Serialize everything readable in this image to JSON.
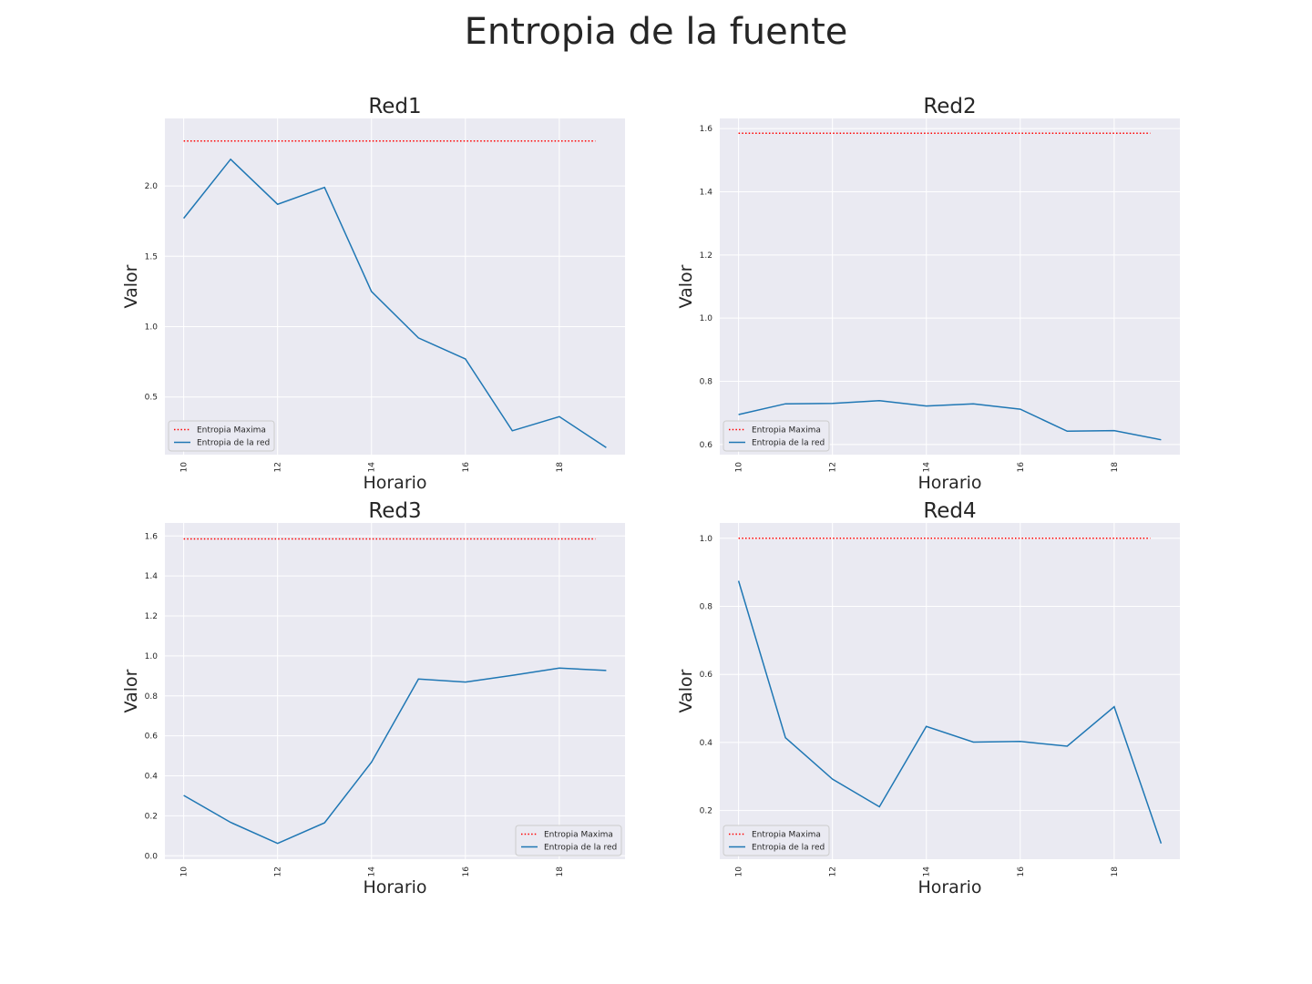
{
  "figure": {
    "title": "Entropia de la fuente"
  },
  "colors": {
    "background": "#EAEAF2",
    "grid": "#FFFFFF",
    "max_line": "#FF0000",
    "series_line": "#1F77B4"
  },
  "chart_data": [
    {
      "type": "line",
      "title": "Red1",
      "xlabel": "Horario",
      "ylabel": "Valor",
      "x": [
        10,
        11,
        12,
        13,
        14,
        15,
        16,
        17,
        18,
        19
      ],
      "xticks": [
        10,
        12,
        14,
        16,
        18
      ],
      "xlim": [
        9.6,
        19.4
      ],
      "yticks": [
        0.5,
        1.0,
        1.5,
        2.0
      ],
      "ylim": [
        0.09,
        2.48
      ],
      "legend_position": "lower-left",
      "series": [
        {
          "name": "Entropia Maxima",
          "style": "dotted",
          "values": [
            2.32,
            2.32,
            2.32,
            2.32,
            2.32,
            2.32,
            2.32,
            2.32,
            2.32,
            2.32
          ]
        },
        {
          "name": "Entropia de la red",
          "style": "solid",
          "values": [
            1.77,
            2.19,
            1.87,
            1.99,
            1.25,
            0.92,
            0.77,
            0.26,
            0.36,
            0.14
          ]
        }
      ]
    },
    {
      "type": "line",
      "title": "Red2",
      "xlabel": "Horario",
      "ylabel": "Valor",
      "x": [
        10,
        11,
        12,
        13,
        14,
        15,
        16,
        17,
        18,
        19
      ],
      "xticks": [
        10,
        12,
        14,
        16,
        18
      ],
      "xlim": [
        9.6,
        19.4
      ],
      "yticks": [
        0.6,
        0.8,
        1.0,
        1.2,
        1.4,
        1.6
      ],
      "ylim": [
        0.568,
        1.632
      ],
      "legend_position": "lower-left",
      "series": [
        {
          "name": "Entropia Maxima",
          "style": "dotted",
          "values": [
            1.585,
            1.585,
            1.585,
            1.585,
            1.585,
            1.585,
            1.585,
            1.585,
            1.585,
            1.585
          ]
        },
        {
          "name": "Entropia de la red",
          "style": "solid",
          "values": [
            0.695,
            0.729,
            0.73,
            0.739,
            0.722,
            0.729,
            0.712,
            0.642,
            0.644,
            0.615
          ]
        }
      ]
    },
    {
      "type": "line",
      "title": "Red3",
      "xlabel": "Horario",
      "ylabel": "Valor",
      "x": [
        10,
        11,
        12,
        13,
        14,
        15,
        16,
        17,
        18,
        19
      ],
      "xticks": [
        10,
        12,
        14,
        16,
        18
      ],
      "xlim": [
        9.6,
        19.4
      ],
      "yticks": [
        0.0,
        0.2,
        0.4,
        0.6,
        0.8,
        1.0,
        1.2,
        1.4,
        1.6
      ],
      "ylim": [
        -0.017,
        1.665
      ],
      "legend_position": "lower-right",
      "series": [
        {
          "name": "Entropia Maxima",
          "style": "dotted",
          "values": [
            1.585,
            1.585,
            1.585,
            1.585,
            1.585,
            1.585,
            1.585,
            1.585,
            1.585,
            1.585
          ]
        },
        {
          "name": "Entropia de la red",
          "style": "solid",
          "values": [
            0.302,
            0.167,
            0.062,
            0.165,
            0.468,
            0.884,
            0.869,
            0.903,
            0.939,
            0.927
          ]
        }
      ]
    },
    {
      "type": "line",
      "title": "Red4",
      "xlabel": "Horario",
      "ylabel": "Valor",
      "x": [
        10,
        11,
        12,
        13,
        14,
        15,
        16,
        17,
        18,
        19
      ],
      "xticks": [
        10,
        12,
        14,
        16,
        18
      ],
      "xlim": [
        9.6,
        19.4
      ],
      "yticks": [
        0.2,
        0.4,
        0.6,
        0.8,
        1.0
      ],
      "ylim": [
        0.057,
        1.045
      ],
      "legend_position": "lower-left",
      "series": [
        {
          "name": "Entropia Maxima",
          "style": "dotted",
          "values": [
            1.0,
            1.0,
            1.0,
            1.0,
            1.0,
            1.0,
            1.0,
            1.0,
            1.0,
            1.0
          ]
        },
        {
          "name": "Entropia de la red",
          "style": "solid",
          "values": [
            0.875,
            0.414,
            0.292,
            0.211,
            0.447,
            0.401,
            0.403,
            0.389,
            0.505,
            0.103
          ]
        }
      ]
    }
  ]
}
